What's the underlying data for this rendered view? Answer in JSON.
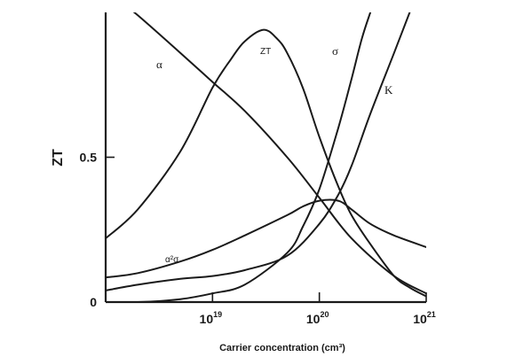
{
  "chart_data": {
    "type": "line",
    "title": "",
    "xlabel": "Carrier concentration (cm³)",
    "ylabel": "ZT",
    "x_scale": "log",
    "xlim": [
      1e+18,
      1e+21
    ],
    "ylim": [
      0,
      1.0
    ],
    "grid": false,
    "legend": "none",
    "x_ticks": [
      {
        "value": 1e+19,
        "base": "10",
        "exp": "19"
      },
      {
        "value": 1e+20,
        "base": "10",
        "exp": "20"
      },
      {
        "value": 1e+21,
        "base": "10",
        "exp": "21"
      }
    ],
    "y_ticks": [
      {
        "value": 0,
        "label": "0"
      },
      {
        "value": 0.5,
        "label": "0.5"
      }
    ],
    "series": [
      {
        "name": "α",
        "x": [
          1e+18,
          2e+18,
          5e+18,
          1e+19,
          2e+19,
          5e+19,
          1e+20,
          2e+20,
          5e+20,
          1e+21
        ],
        "values": [
          1.08,
          0.99,
          0.86,
          0.76,
          0.66,
          0.5,
          0.36,
          0.22,
          0.09,
          0.03
        ]
      },
      {
        "name": "ZT",
        "x": [
          1e+18,
          2e+18,
          5e+18,
          1e+19,
          1.5e+19,
          2e+19,
          3e+19,
          4e+19,
          5e+19,
          7e+19,
          1e+20,
          1.5e+20,
          2e+20,
          3e+20,
          5e+20,
          7e+20,
          1e+21
        ],
        "values": [
          0.22,
          0.32,
          0.52,
          0.74,
          0.84,
          0.9,
          0.94,
          0.91,
          0.86,
          0.74,
          0.57,
          0.4,
          0.3,
          0.2,
          0.09,
          0.05,
          0.02
        ]
      },
      {
        "name": "σ",
        "x": [
          1e+18,
          2e+18,
          5e+18,
          1e+19,
          2e+19,
          5e+19,
          7e+19,
          1e+20,
          1.5e+20,
          2e+20,
          2.5e+20,
          3e+20
        ],
        "values": [
          0.0,
          0.0,
          0.01,
          0.03,
          0.06,
          0.17,
          0.26,
          0.39,
          0.6,
          0.77,
          0.91,
          1.0
        ]
      },
      {
        "name": "K",
        "x": [
          1e+18,
          2e+18,
          5e+18,
          1e+19,
          2e+19,
          5e+19,
          1e+20,
          1.5e+20,
          2e+20,
          3e+20,
          5e+20,
          7e+20
        ],
        "values": [
          0.04,
          0.06,
          0.08,
          0.09,
          0.11,
          0.16,
          0.27,
          0.37,
          0.47,
          0.65,
          0.86,
          1.0
        ]
      },
      {
        "name": "α²σ",
        "x": [
          1e+18,
          2e+18,
          5e+18,
          1e+19,
          2e+19,
          5e+19,
          7e+19,
          1e+20,
          1.5e+20,
          2e+20,
          3e+20,
          5e+20,
          1e+21
        ],
        "values": [
          0.085,
          0.1,
          0.14,
          0.18,
          0.23,
          0.3,
          0.33,
          0.35,
          0.35,
          0.32,
          0.27,
          0.23,
          0.19
        ]
      }
    ],
    "annotations": [
      {
        "text": "α",
        "series": "α"
      },
      {
        "text": "ZT",
        "series": "ZT"
      },
      {
        "text": "σ",
        "series": "σ"
      },
      {
        "text": "K",
        "series": "K"
      },
      {
        "text": "α²σ",
        "series": "α²σ"
      }
    ]
  }
}
